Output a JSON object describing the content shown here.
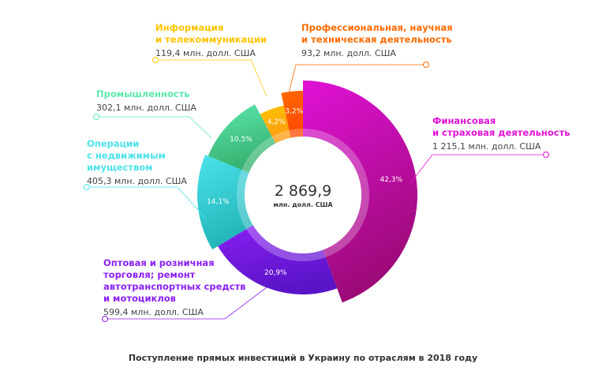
{
  "chart_data": {
    "type": "pie",
    "variant": "donut",
    "title": "Поступление прямых инвестиций в Украину по отраслям в 2018 году",
    "total": {
      "value": "2 869,9",
      "unit": "млн. долл. США"
    },
    "slices": [
      {
        "name": "Финансовая и страховая деятельность",
        "name_lines": [
          "Финансовая",
          "и страховая деятельность"
        ],
        "value": 1215.1,
        "value_label": "1 215,1 млн. долл. США",
        "percent": 42.3,
        "percent_label": "42,3%",
        "color": "#e012d6",
        "color_dark": "#9c0a78"
      },
      {
        "name": "Оптовая и розничная торговля; ремонт автотранспортных средств и мотоциклов",
        "name_lines": [
          "Оптовая и розничная",
          "торговля; ремонт",
          "автотранспортных средств",
          "и мотоциклов"
        ],
        "value": 599.4,
        "value_label": "599,4 млн. долл. США",
        "percent": 20.9,
        "percent_label": "20,9%",
        "color": "#8a1ff2",
        "color_dark": "#5a14c8"
      },
      {
        "name": "Операции с недвижимым имуществом",
        "name_lines": [
          "Операции",
          "с недвижимым",
          "имуществом"
        ],
        "value": 405.3,
        "value_label": "405,3 млн. долл. США",
        "percent": 14.1,
        "percent_label": "14,1%",
        "color": "#4de3ec",
        "color_dark": "#22b5b8"
      },
      {
        "name": "Промышленность",
        "name_lines": [
          "Промышленность"
        ],
        "value": 302.1,
        "value_label": "302,1 млн. долл. США",
        "percent": 10.5,
        "percent_label": "10,5%",
        "color": "#5ee8ae",
        "color_dark": "#35b06e"
      },
      {
        "name": "Информация и телекоммуникации",
        "name_lines": [
          "Информация",
          "и телекоммуникации"
        ],
        "value": 119.4,
        "value_label": "119,4 млн. долл. США",
        "percent": 4.2,
        "percent_label": "4,2%",
        "color": "#ffc400",
        "color_dark": "#ff9a10"
      },
      {
        "name": "Профессиональная, научная и техническая деятельность",
        "name_lines": [
          "Профессиональная, научная",
          "и техническая деятельность"
        ],
        "value": 93.2,
        "value_label": "93,2 млн. долл. США",
        "percent": 3.2,
        "percent_label": "3,2%",
        "color": "#ff6a00",
        "color_dark": "#ff4a00"
      }
    ]
  }
}
